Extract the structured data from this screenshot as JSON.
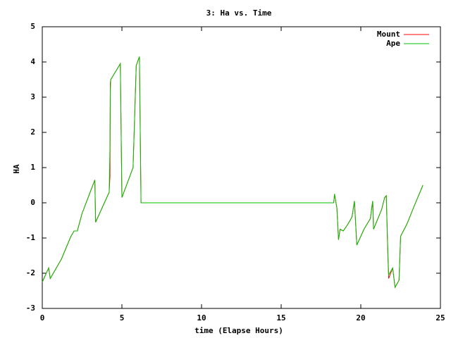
{
  "chart_data": {
    "type": "line",
    "title": "3: Ha vs. Time",
    "x_label": "time (Elapse Hours)",
    "y_label": "HA",
    "x": [
      0,
      0.4,
      0.5,
      1.2,
      1.8,
      2.0,
      2.2,
      2.5,
      3.3,
      3.35,
      4.2,
      4.25,
      4.27,
      4.3,
      4.9,
      5.0,
      5.7,
      5.9,
      6.1,
      6.2,
      18.3,
      18.35,
      18.5,
      18.6,
      18.7,
      18.9,
      19.2,
      19.45,
      19.6,
      19.75,
      20.2,
      20.6,
      20.7,
      20.75,
      20.8,
      21.3,
      21.5,
      21.6,
      21.7,
      21.75,
      22.0,
      22.15,
      22.4,
      22.5,
      22.9,
      23.3,
      23.9
    ],
    "series": [
      {
        "name": "Mount",
        "color": "#ff0000",
        "values": [
          -2.25,
          -1.85,
          -2.15,
          -1.6,
          -0.95,
          -0.8,
          -0.8,
          -0.3,
          0.65,
          -0.55,
          0.3,
          0.75,
          3.4,
          3.5,
          3.95,
          0.15,
          1.0,
          3.9,
          4.15,
          0,
          0,
          0.25,
          -0.15,
          -1.05,
          -0.75,
          -0.8,
          -0.6,
          -0.4,
          0.05,
          -1.2,
          -0.75,
          -0.45,
          -0.1,
          0.05,
          -0.75,
          -0.2,
          0.15,
          0.2,
          -1.5,
          -2.15,
          -1.85,
          -2.4,
          -2.2,
          -0.95,
          -0.6,
          -0.15,
          0.5
        ]
      },
      {
        "name": "Ape",
        "color": "#00c000",
        "values": [
          -2.25,
          -1.85,
          -2.15,
          -1.6,
          -0.95,
          -0.8,
          -0.8,
          -0.3,
          0.65,
          -0.55,
          0.3,
          1.6,
          3.1,
          3.5,
          3.95,
          0.15,
          1.0,
          3.9,
          4.15,
          0,
          0,
          0.25,
          -0.15,
          -1.05,
          -0.75,
          -0.8,
          -0.6,
          -0.4,
          0.05,
          -1.2,
          -0.75,
          -0.45,
          -0.1,
          0.05,
          -0.75,
          -0.2,
          0.15,
          0.2,
          -1.4,
          -2.05,
          -1.85,
          -2.4,
          -2.2,
          -0.95,
          -0.6,
          -0.15,
          0.5
        ]
      }
    ],
    "xlim": [
      0,
      25
    ],
    "xticks": [
      0,
      5,
      10,
      15,
      20,
      25
    ],
    "ylim": [
      -3,
      5
    ],
    "yticks": [
      -3,
      -2,
      -1,
      0,
      1,
      2,
      3,
      4,
      5
    ],
    "legend": "top-right"
  }
}
